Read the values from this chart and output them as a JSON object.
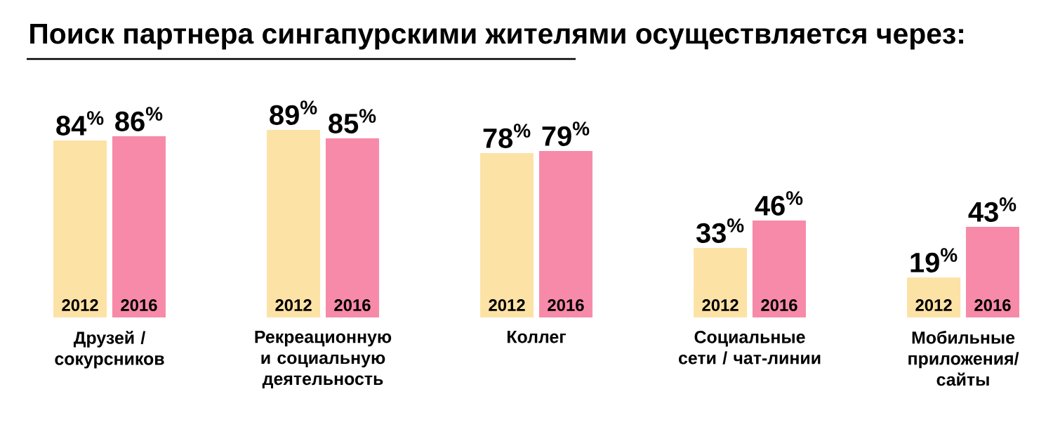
{
  "chart_data": {
    "type": "bar",
    "title": "Поиск партнера сингапурскими жителями осуществляется через:",
    "categories": [
      "Друзей / сокурсников",
      "Рекреационную и социальную деятельность",
      "Коллег",
      "Социальные сети / чат-линии",
      "Мобильные приложения/ сайты"
    ],
    "series": [
      {
        "name": "2012",
        "color": "#fde2a6",
        "values": [
          84,
          89,
          78,
          33,
          19
        ],
        "value_labels": [
          "84$^{%}$",
          "89$^{%}$",
          "78$^{%}$",
          "33$^{%}$",
          "19$^{%}$"
        ]
      },
      {
        "name": "2016",
        "color": "#f78aa8",
        "values": [
          86,
          85,
          79,
          46,
          43
        ],
        "value_labels": [
          "86$^{%}$",
          "85$^{%}$",
          "79$^{%}$",
          "46$^{%}$",
          "43$^{%}$"
        ]
      }
    ],
    "legend": false
  }
}
